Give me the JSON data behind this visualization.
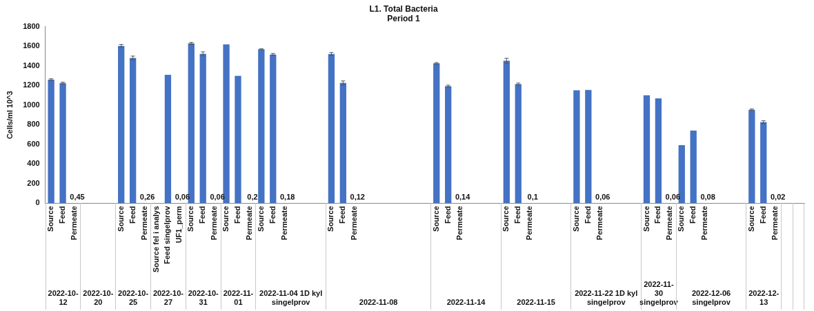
{
  "chart_data": {
    "type": "bar",
    "title": "L1. Total Bacteria",
    "subtitle": "Period 1",
    "ylabel": "Cells/ml 10^3",
    "categories": [
      "Source",
      "Feed",
      "Permeate",
      null,
      null,
      null,
      "Source",
      "Feed",
      "Permeate",
      "Source fel i analys",
      "Feed singelprov",
      "UF1_perm",
      "Source",
      "Feed",
      "Permeate",
      "Source",
      "Feed",
      "Permeate",
      "Source",
      "Feed",
      "Permeate",
      null,
      null,
      null,
      "Source",
      "Feed",
      "Permeate",
      null,
      null,
      null,
      null,
      null,
      null,
      "Source",
      "Feed",
      "Permeate",
      null,
      null,
      null,
      "Source",
      "Feed",
      "Permeate",
      null,
      null,
      null,
      "Source",
      "Feed",
      "Permeate",
      null,
      null,
      null,
      "Source",
      "Feed",
      "Permeate",
      "Source",
      "Feed",
      "Permeate",
      null,
      null,
      null,
      "Source",
      "Feed",
      "Permeate",
      null,
      null
    ],
    "values": [
      1261,
      1225,
      0.45,
      null,
      null,
      null,
      1604,
      1481,
      0.26,
      null,
      1309,
      0.06,
      1630,
      1524,
      0.06,
      1620,
      1299,
      0.2,
      1570,
      1517,
      0.18,
      null,
      null,
      null,
      1522,
      1227,
      0.12,
      null,
      null,
      null,
      null,
      null,
      null,
      1426,
      1194,
      0.14,
      null,
      null,
      null,
      1453,
      1215,
      0.1,
      null,
      null,
      null,
      1151,
      1155,
      0.06,
      null,
      null,
      null,
      1100,
      1069,
      0.06,
      592,
      741,
      0.08,
      null,
      null,
      null,
      954,
      827,
      0.02,
      null,
      null
    ],
    "errors": [
      8,
      10,
      null,
      null,
      null,
      null,
      15,
      20,
      null,
      null,
      null,
      null,
      10,
      20,
      null,
      null,
      null,
      null,
      5,
      10,
      null,
      null,
      null,
      null,
      15,
      20,
      null,
      null,
      null,
      null,
      null,
      null,
      null,
      8,
      10,
      null,
      null,
      null,
      null,
      25,
      10,
      null,
      null,
      null,
      null,
      null,
      null,
      null,
      null,
      null,
      null,
      null,
      null,
      null,
      null,
      null,
      null,
      null,
      null,
      null,
      8,
      15,
      null,
      null,
      null
    ],
    "value_labels": [
      null,
      null,
      "0,45",
      null,
      null,
      null,
      null,
      null,
      "0,26",
      null,
      null,
      "0,06",
      null,
      null,
      "0,06",
      null,
      null,
      "0,2",
      null,
      null,
      "0,18",
      null,
      null,
      null,
      null,
      null,
      "0,12",
      null,
      null,
      null,
      null,
      null,
      null,
      null,
      null,
      "0,14",
      null,
      null,
      null,
      null,
      null,
      "0,1",
      null,
      null,
      null,
      null,
      null,
      "0,06",
      null,
      null,
      null,
      null,
      null,
      "0,06",
      null,
      null,
      "0,08",
      null,
      null,
      null,
      null,
      null,
      "0,02",
      null,
      null
    ],
    "color": "#4472c4",
    "ylim": [
      0,
      1800
    ],
    "yticks": [
      0,
      200,
      400,
      600,
      800,
      1000,
      1200,
      1400,
      1600,
      1800
    ],
    "annotations": [
      "2022-10-12",
      "2022-10-20",
      "2022-10-25",
      "2022-10-27",
      "2022-10-31",
      "2022-11-01",
      "2022-11-04  1D kyl singelprov",
      "2022-11-08",
      "2022-11-14",
      "2022-11-15",
      "2022-11-22 1D kyl singelprov",
      "2022-11-30 singelprov",
      "2022-12-06 singelprov",
      "2022-12-13"
    ],
    "grid": false,
    "legend": false
  }
}
